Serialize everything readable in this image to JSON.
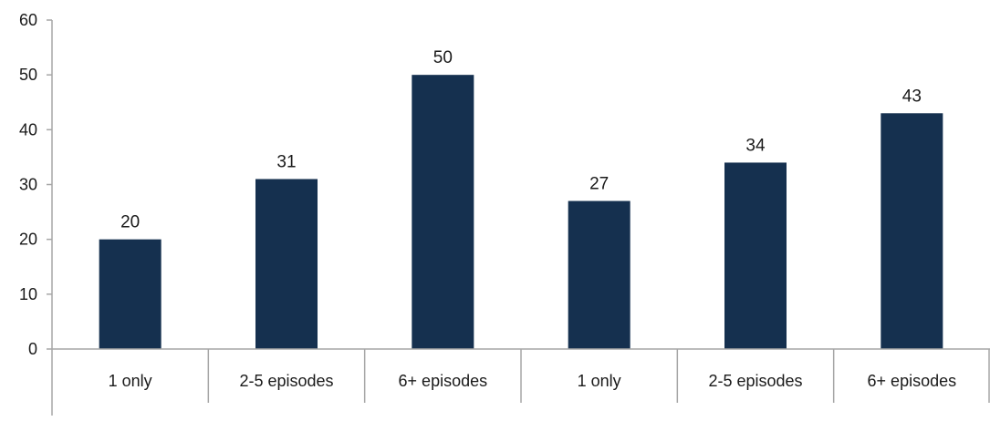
{
  "chart_data": {
    "type": "bar",
    "title": "",
    "xlabel": "",
    "ylabel": "",
    "categories": [
      "1 only",
      "2-5 episodes",
      "6+ episodes",
      "1 only",
      "2-5 episodes",
      "6+ episodes"
    ],
    "values": [
      20,
      31,
      50,
      27,
      34,
      43
    ],
    "data_labels": [
      "20",
      "31",
      "50",
      "27",
      "34",
      "43"
    ],
    "ylim": [
      0,
      60
    ],
    "yticks": [
      0,
      10,
      20,
      30,
      40,
      50,
      60
    ],
    "ytick_labels": [
      "0",
      "10",
      "20",
      "30",
      "40",
      "50",
      "60"
    ],
    "grid": false,
    "legend": "none",
    "bar_color": "#15304f",
    "axis_color": "#a6a6a6"
  }
}
